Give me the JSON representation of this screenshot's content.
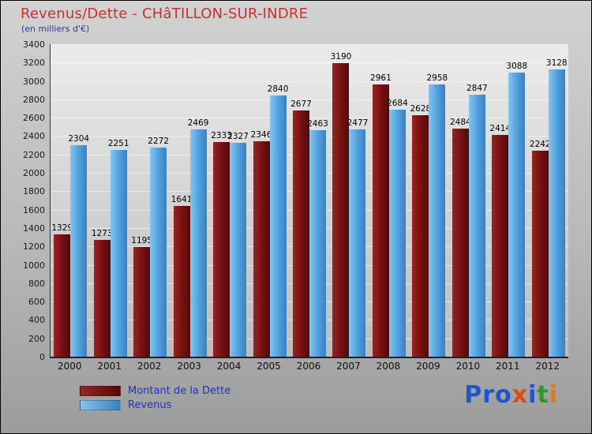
{
  "header": {
    "title": "Revenus/Dette - CHâTILLON-SUR-INDRE",
    "subtitle": "(en milliers d'€)"
  },
  "chart_data": {
    "type": "bar",
    "title": "Revenus/Dette - CHâTILLON-SUR-INDRE",
    "subtitle": "(en milliers d'€)",
    "categories": [
      "2000",
      "2001",
      "2002",
      "2003",
      "2004",
      "2005",
      "2006",
      "2007",
      "2008",
      "2009",
      "2010",
      "2011",
      "2012"
    ],
    "series": [
      {
        "name": "Montant de la Dette",
        "color": "#7a1212",
        "values": [
          1329,
          1273,
          1195,
          1641,
          2333,
          2346,
          2677,
          3190,
          2961,
          2628,
          2484,
          2414,
          2242
        ]
      },
      {
        "name": "Revenus",
        "color": "#55a6e0",
        "values": [
          2304,
          2251,
          2272,
          2469,
          2327,
          2840,
          2463,
          2477,
          2684,
          2958,
          2847,
          3088,
          3128
        ]
      }
    ],
    "ylim": [
      0,
      3400
    ],
    "ytick_step": 200,
    "y_ticks": [
      0,
      200,
      400,
      600,
      800,
      1000,
      1200,
      1400,
      1600,
      1800,
      2000,
      2200,
      2400,
      2600,
      2800,
      3000,
      3200,
      3400
    ],
    "grid": true,
    "legend_position": "bottom-left"
  },
  "logo": {
    "letters": [
      {
        "ch": "P",
        "color": "#1d56c8"
      },
      {
        "ch": "r",
        "color": "#1d56c8"
      },
      {
        "ch": "o",
        "color": "#1d56c8"
      },
      {
        "ch": "x",
        "color": "#e04810"
      },
      {
        "ch": "i",
        "color": "#1d56c8"
      },
      {
        "ch": "t",
        "color": "#2a9a2a"
      },
      {
        "ch": "i",
        "color": "#e07818"
      }
    ]
  }
}
